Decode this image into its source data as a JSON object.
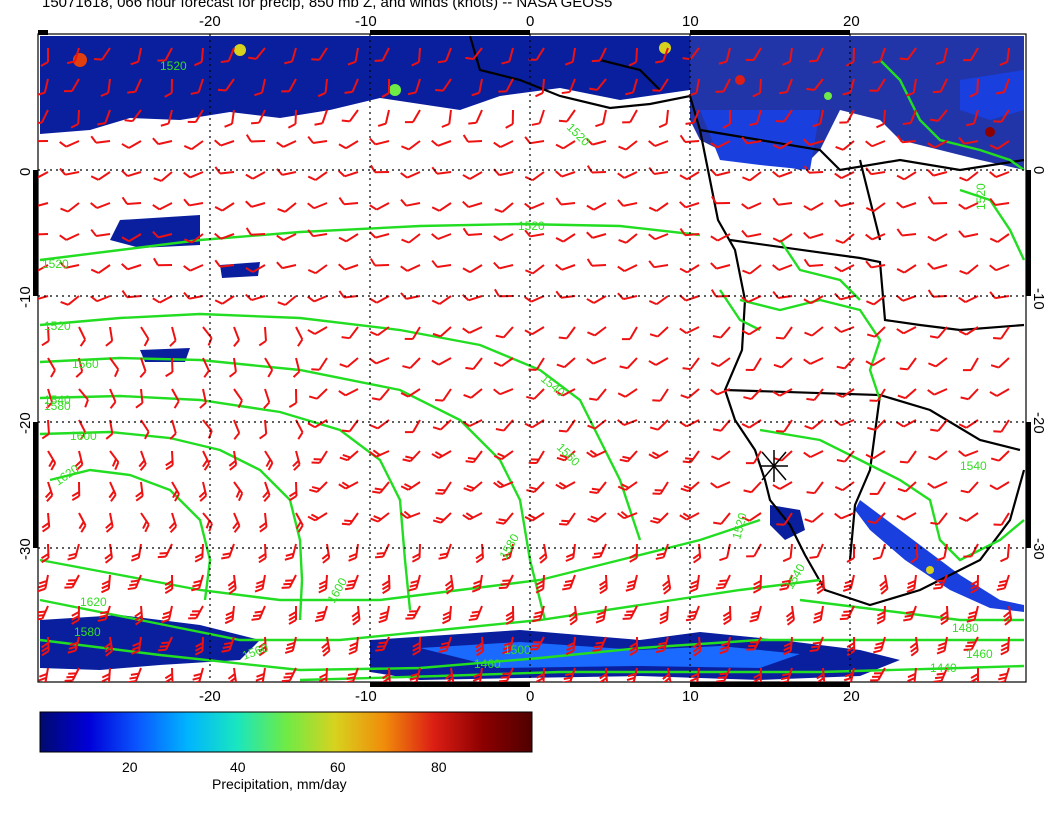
{
  "title": "15071618, 066 hour forecast for precip, 850 mb Z, and winds (knots) -- NASA GEOS5",
  "map": {
    "lon_range": [
      -30,
      30
    ],
    "lat_range": [
      -40,
      10
    ],
    "lon_ticks": [
      "-20",
      "-10",
      "0",
      "10",
      "20"
    ],
    "lat_ticks": [
      "0",
      "-10",
      "-20",
      "-30"
    ],
    "gridlines": true,
    "contour_color": "#22dd22",
    "barb_color": "#ee1111",
    "coast_color": "#000000",
    "contour_labels": [
      "1520",
      "1520",
      "1520",
      "1520",
      "1520",
      "1540",
      "1540",
      "1560",
      "1580",
      "1600",
      "1620",
      "1560",
      "1580",
      "1600",
      "1620",
      "1580",
      "1560",
      "1540",
      "1520",
      "1480",
      "1460",
      "1460",
      "1440",
      "1500",
      "1520",
      "1540"
    ]
  },
  "colorbar": {
    "ticks": [
      "20",
      "40",
      "60",
      "80"
    ],
    "label": "Precipitation, mm/day",
    "colors": [
      "#000a6e",
      "#0000d8",
      "#0a58ff",
      "#00b4ff",
      "#19e6c0",
      "#6eeb46",
      "#d7d21e",
      "#f08c0a",
      "#dc1e14",
      "#8c0000",
      "#500000"
    ]
  }
}
